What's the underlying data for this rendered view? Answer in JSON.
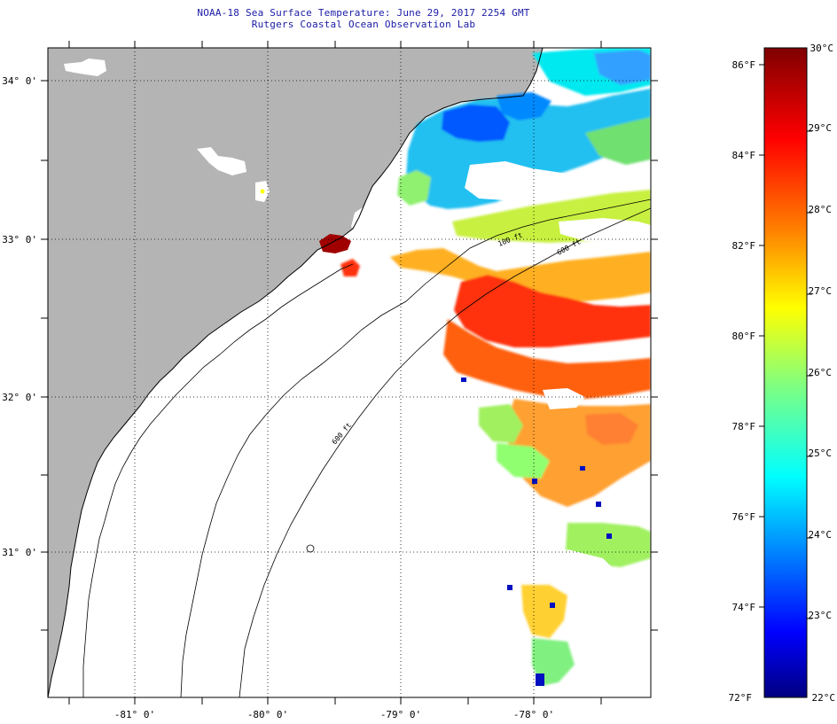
{
  "header": {
    "title": "NOAA-18 Sea Surface Temperature:  June 29, 2017 2254 GMT",
    "subtitle": "Rutgers Coastal Ocean Observation Lab"
  },
  "map": {
    "lon_labels": [
      "-81° 0'",
      "-80° 0'",
      "-79° 0'",
      "-78° 0'"
    ],
    "lat_labels": [
      "34° 0'",
      "33° 0'",
      "32° 0'",
      "31° 0'"
    ],
    "contour_labels": [
      "100 ft",
      "600 ft",
      "600 ft"
    ],
    "colors": {
      "land": "#b4b4b4",
      "cloud": "#ffffff",
      "coast": "#000000"
    }
  },
  "colorbar": {
    "fahrenheit_labels": [
      "86°F",
      "84°F",
      "82°F",
      "80°F",
      "78°F",
      "76°F",
      "74°F",
      "72°F"
    ],
    "celsius_labels": [
      "30°C",
      "29°C",
      "28°C",
      "27°C",
      "26°C",
      "25°C",
      "24°C",
      "23°C",
      "22°C"
    ],
    "colors": [
      "#00007f",
      "#0000ff",
      "#0080ff",
      "#00ffff",
      "#80ff80",
      "#ffff00",
      "#ff8000",
      "#ff0000",
      "#7f0000"
    ]
  }
}
